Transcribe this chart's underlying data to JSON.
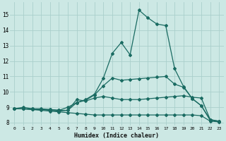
{
  "xlabel": "Humidex (Indice chaleur)",
  "bg_color": "#cce8e4",
  "grid_color": "#aacfcc",
  "line_color": "#1a6b62",
  "line_width": 0.9,
  "marker": "D",
  "marker_size": 2.0,
  "xlim": [
    -0.5,
    23.5
  ],
  "ylim": [
    7.8,
    15.8
  ],
  "xticks": [
    0,
    1,
    2,
    3,
    4,
    5,
    6,
    7,
    8,
    9,
    10,
    11,
    12,
    13,
    14,
    15,
    16,
    17,
    18,
    19,
    20,
    21,
    22,
    23
  ],
  "yticks": [
    8,
    9,
    10,
    11,
    12,
    13,
    14,
    15
  ],
  "series": [
    [
      8.9,
      9.0,
      8.9,
      8.9,
      8.85,
      8.8,
      8.8,
      9.3,
      9.5,
      9.85,
      10.9,
      12.5,
      13.2,
      12.4,
      15.3,
      14.8,
      14.4,
      14.3,
      11.5,
      10.35,
      9.55,
      9.1,
      8.15,
      8.1
    ],
    [
      8.9,
      8.9,
      8.9,
      8.85,
      8.85,
      8.8,
      9.0,
      9.3,
      9.45,
      9.8,
      10.4,
      10.9,
      10.75,
      10.8,
      10.85,
      10.9,
      10.95,
      11.0,
      10.5,
      10.3,
      9.55,
      9.1,
      8.2,
      8.1
    ],
    [
      8.9,
      8.9,
      8.85,
      8.85,
      8.8,
      8.75,
      8.8,
      9.5,
      9.4,
      9.6,
      9.7,
      9.6,
      9.5,
      9.5,
      9.5,
      9.55,
      9.6,
      9.65,
      9.7,
      9.75,
      9.65,
      9.6,
      8.2,
      8.05
    ],
    [
      8.9,
      8.9,
      8.85,
      8.8,
      8.75,
      8.7,
      8.65,
      8.6,
      8.55,
      8.5,
      8.5,
      8.5,
      8.5,
      8.5,
      8.5,
      8.5,
      8.5,
      8.5,
      8.5,
      8.5,
      8.5,
      8.45,
      8.1,
      8.05
    ]
  ]
}
